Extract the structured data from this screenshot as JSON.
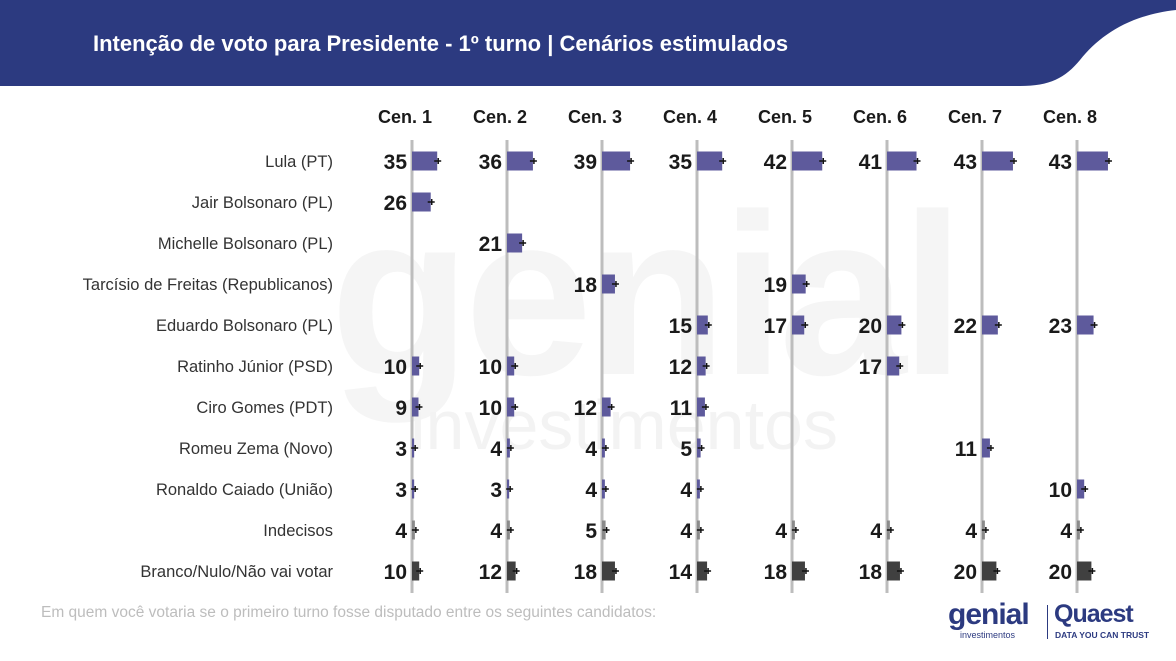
{
  "header": {
    "title": "Intenção de voto para Presidente - 1º turno | Cenários estimulados"
  },
  "watermark": {
    "big": "genial",
    "small": "investimentos"
  },
  "footnote": "Em quem você votaria se o primeiro turno fosse disputado entre os seguintes candidatos:",
  "logos": {
    "genial": "genial",
    "genial_sub": "investimentos",
    "quaest": "Quaest",
    "quaest_sub": "DATA YOU CAN TRUST"
  },
  "colors": {
    "header_bg": "#2c3a80",
    "candidate_bar": "#5e5a9c",
    "other_bar": "#404040",
    "axis_line": "#bdbdbd"
  },
  "chart_data": {
    "type": "bar",
    "categories": [
      "Cen. 1",
      "Cen. 2",
      "Cen. 3",
      "Cen. 4",
      "Cen. 5",
      "Cen. 6",
      "Cen. 7",
      "Cen. 8"
    ],
    "series": [
      {
        "name": "Lula (PT)",
        "kind": "candidate",
        "values": [
          35,
          36,
          39,
          35,
          42,
          41,
          43,
          43
        ]
      },
      {
        "name": "Jair Bolsonaro (PL)",
        "kind": "candidate",
        "values": [
          26,
          null,
          null,
          null,
          null,
          null,
          null,
          null
        ]
      },
      {
        "name": "Michelle Bolsonaro (PL)",
        "kind": "candidate",
        "values": [
          null,
          21,
          null,
          null,
          null,
          null,
          null,
          null
        ]
      },
      {
        "name": "Tarcísio de Freitas (Republicanos)",
        "kind": "candidate",
        "values": [
          null,
          null,
          18,
          null,
          19,
          null,
          null,
          null
        ]
      },
      {
        "name": "Eduardo Bolsonaro (PL)",
        "kind": "candidate",
        "values": [
          null,
          null,
          null,
          15,
          17,
          20,
          22,
          23
        ]
      },
      {
        "name": "Ratinho Júnior (PSD)",
        "kind": "candidate",
        "values": [
          10,
          10,
          null,
          12,
          null,
          17,
          null,
          null
        ]
      },
      {
        "name": "Ciro Gomes (PDT)",
        "kind": "candidate",
        "values": [
          9,
          10,
          12,
          11,
          null,
          null,
          null,
          null
        ]
      },
      {
        "name": "Romeu Zema (Novo)",
        "kind": "candidate",
        "values": [
          3,
          4,
          4,
          5,
          null,
          null,
          11,
          null
        ]
      },
      {
        "name": "Ronaldo Caiado (União)",
        "kind": "candidate",
        "values": [
          3,
          3,
          4,
          4,
          null,
          null,
          null,
          10
        ]
      },
      {
        "name": "Indecisos",
        "kind": "undecided",
        "values": [
          4,
          4,
          5,
          4,
          4,
          4,
          4,
          4
        ]
      },
      {
        "name": "Branco/Nulo/Não vai votar",
        "kind": "other",
        "values": [
          10,
          12,
          18,
          14,
          18,
          18,
          20,
          20
        ]
      }
    ],
    "xlim": [
      0,
      100
    ],
    "grid": false,
    "legend": "none"
  }
}
